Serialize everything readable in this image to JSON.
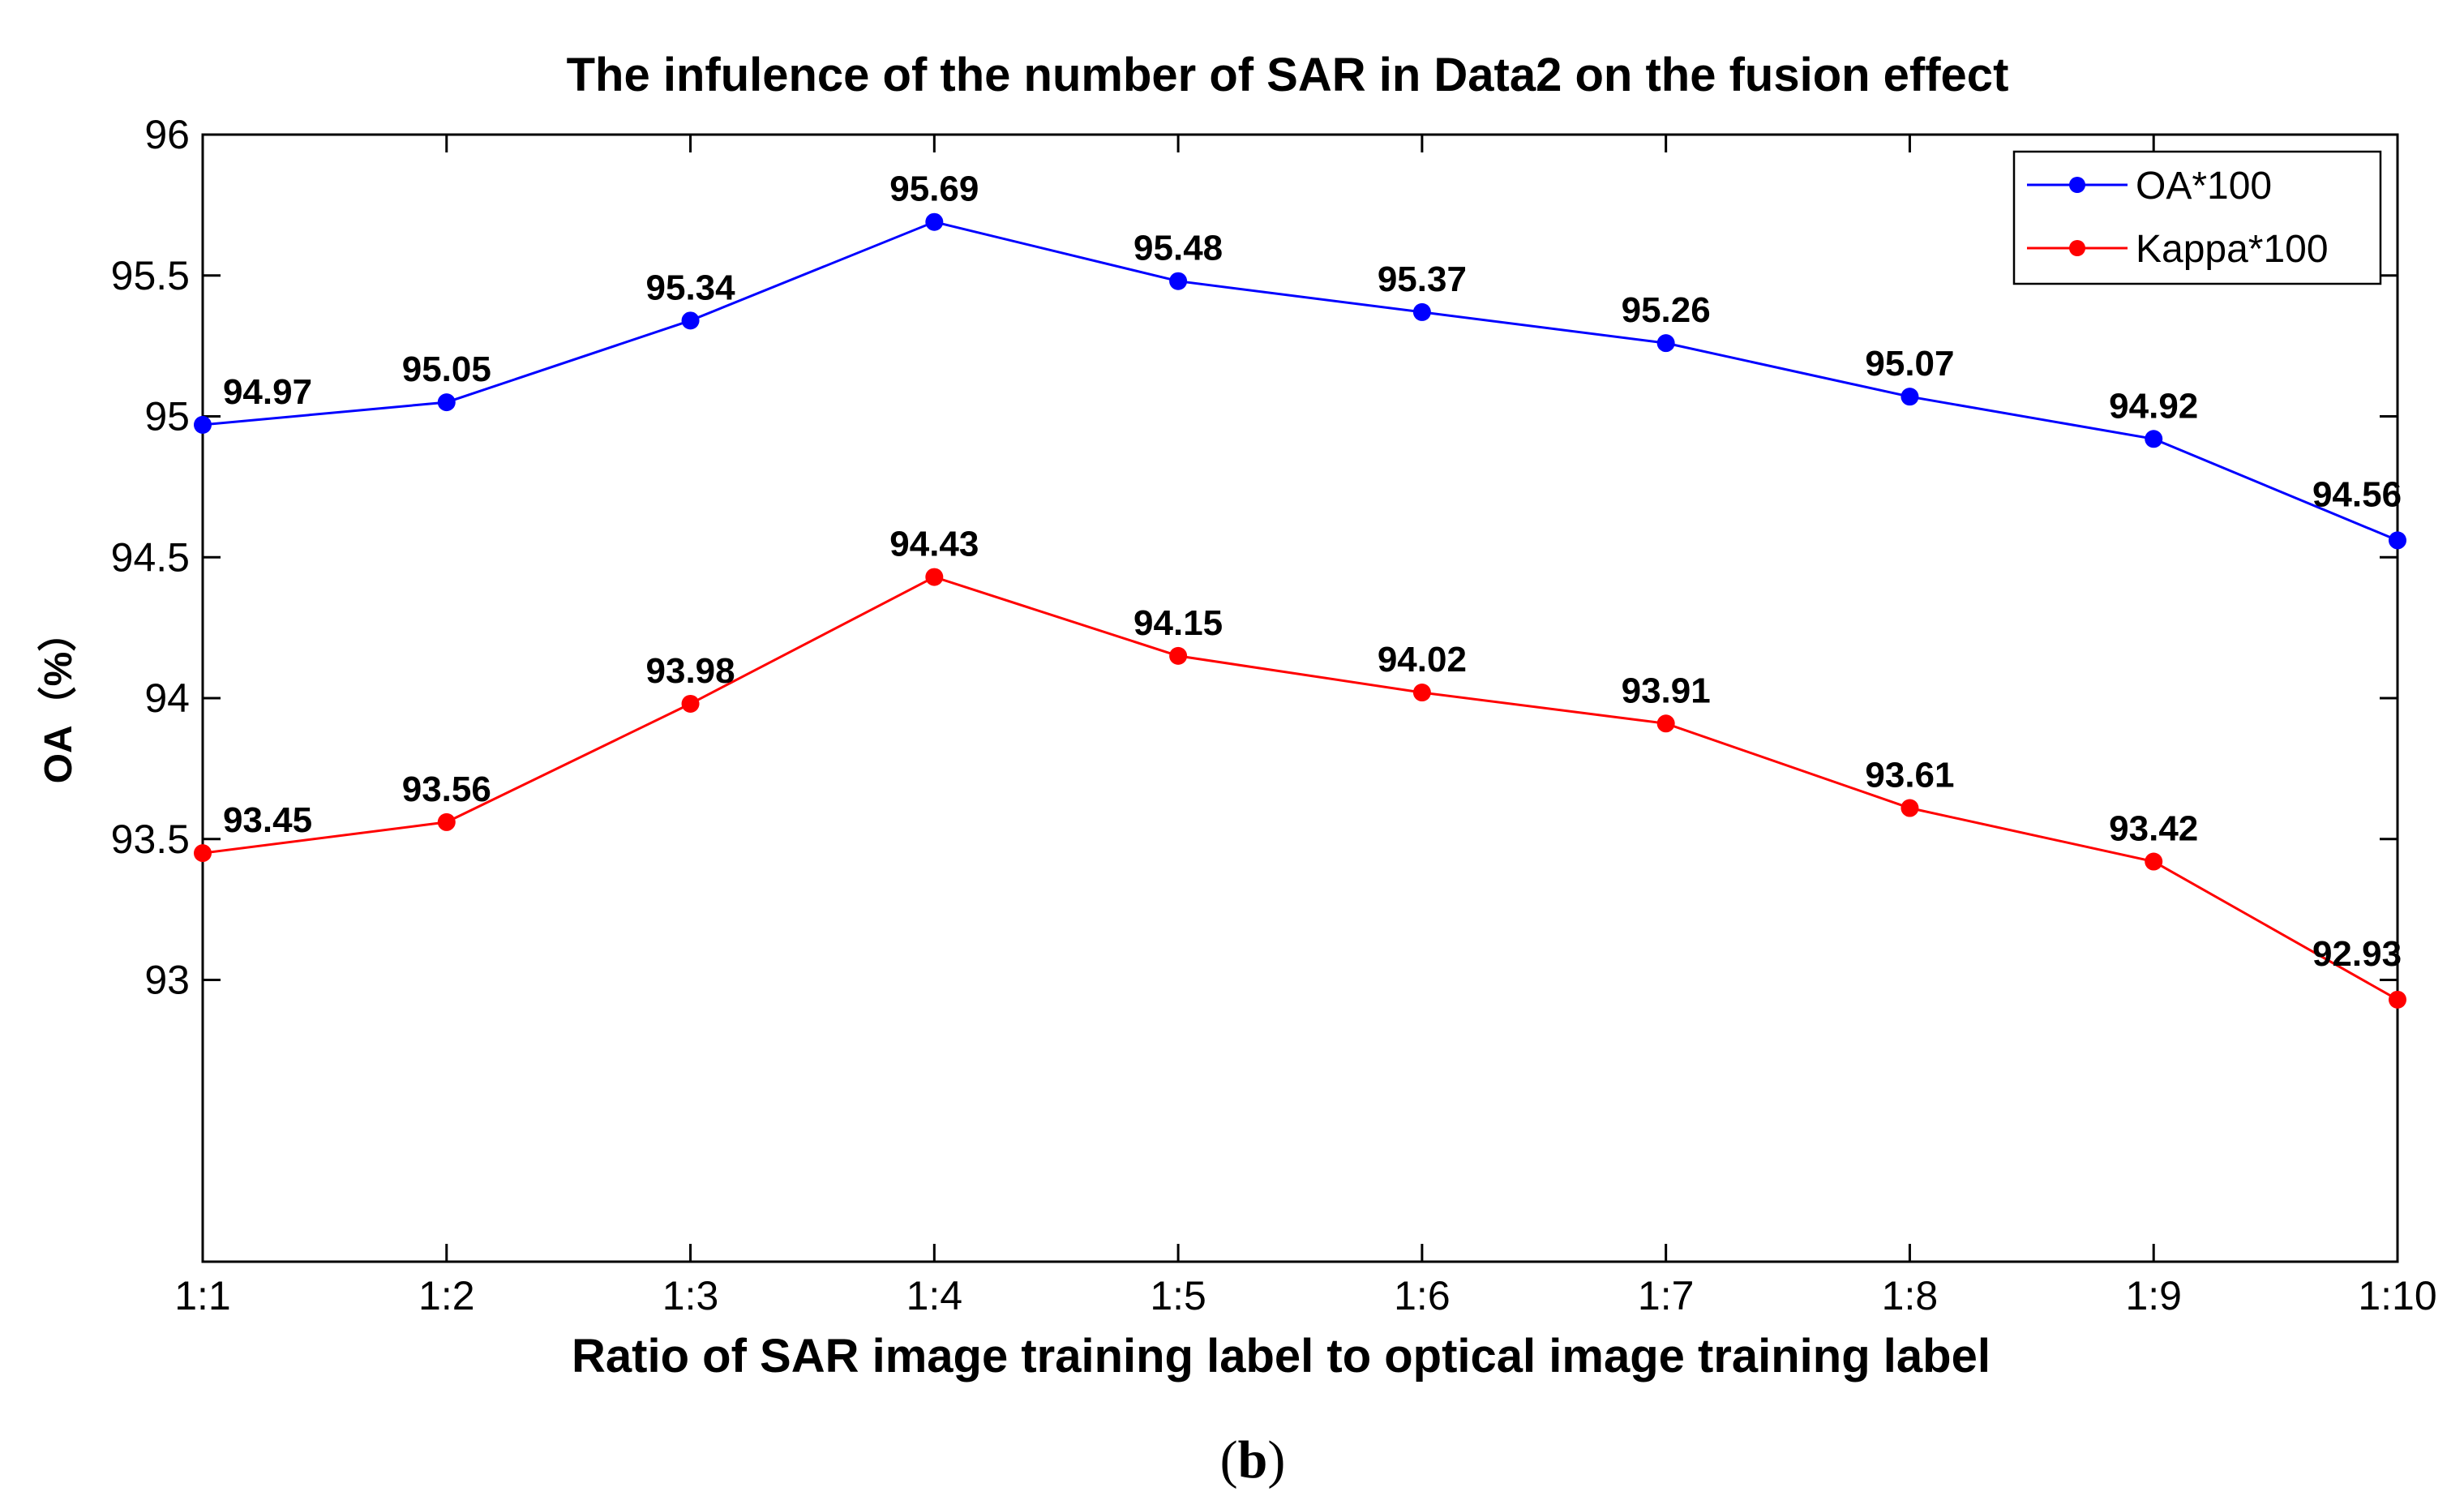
{
  "chart_data": {
    "type": "line",
    "title": "The infulence of the number of SAR in Data2 on the fusion effect",
    "xlabel": "Ratio of SAR image training label to optical image training label",
    "ylabel": "OA（%）",
    "caption": {
      "open": "(",
      "letter": "b",
      "close": ")"
    },
    "categories": [
      "1:1",
      "1:2",
      "1:3",
      "1:4",
      "1:5",
      "1:6",
      "1:7",
      "1:8",
      "1:9",
      "1:10"
    ],
    "ylim": [
      92,
      96
    ],
    "yticks": [
      93,
      93.5,
      94,
      94.5,
      95,
      95.5,
      96
    ],
    "ytick_labels": [
      "93",
      "93.5",
      "94",
      "94.5",
      "95",
      "95.5",
      "96"
    ],
    "grid": false,
    "legend_position": "top-right",
    "series": [
      {
        "name": "OA*100",
        "color": "#0000ff",
        "values": [
          94.97,
          95.05,
          95.34,
          95.69,
          95.48,
          95.37,
          95.26,
          95.07,
          94.92,
          94.56
        ],
        "labels": [
          "94.97",
          "95.05",
          "95.34",
          "95.69",
          "95.48",
          "95.37",
          "95.26",
          "95.07",
          "94.92",
          "94.56"
        ]
      },
      {
        "name": "Kappa*100",
        "color": "#ff0000",
        "values": [
          93.45,
          93.56,
          93.98,
          94.43,
          94.15,
          94.02,
          93.91,
          93.61,
          93.42,
          92.93
        ],
        "labels": [
          "93.45",
          "93.56",
          "93.98",
          "94.43",
          "94.15",
          "94.02",
          "93.91",
          "93.61",
          "93.42",
          "92.93"
        ]
      }
    ]
  }
}
